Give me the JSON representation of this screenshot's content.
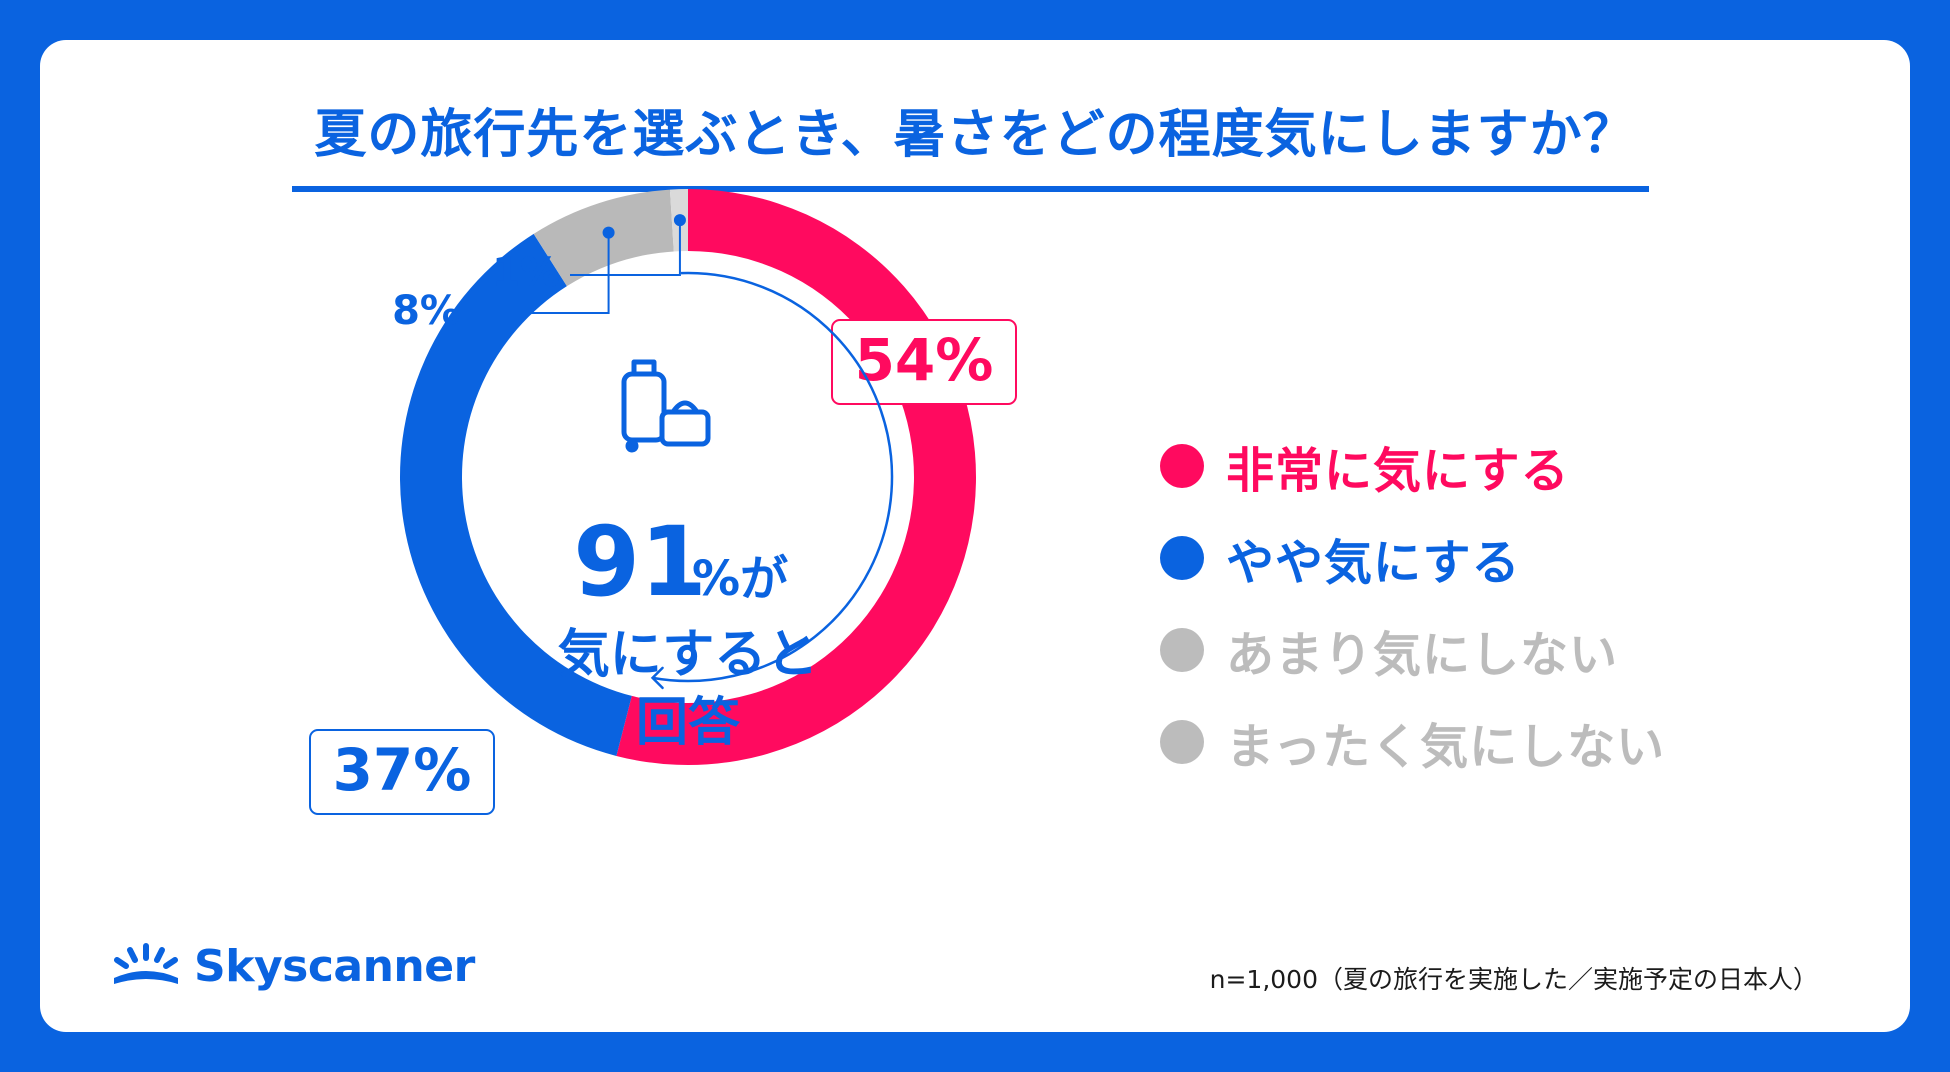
{
  "title": "夏の旅行先を選ぶとき、暑さをどの程度気にしますか？",
  "center": {
    "big_value": "91",
    "line1_suffix": "%が",
    "line2": "気にすると",
    "line3": "回答"
  },
  "chart_data": {
    "type": "pie",
    "donut": true,
    "categories": [
      "非常に気にする",
      "やや気にする",
      "あまり気にしない",
      "まったく気にしない"
    ],
    "values": [
      54,
      37,
      8,
      1
    ],
    "value_labels": [
      "54%",
      "37%",
      "8%",
      "1%"
    ],
    "colors": [
      "#ff0a5f",
      "#0a63e0",
      "#b9b9b9",
      "#dadada"
    ],
    "legend_placement": "right"
  },
  "legend": [
    {
      "label": "非常に気にする",
      "color": "#ff0a5f",
      "text_color": "#ff0a5f"
    },
    {
      "label": "やや気にする",
      "color": "#0a63e0",
      "text_color": "#0a63e0"
    },
    {
      "label": "あまり気にしない",
      "color": "#bcbcbc",
      "text_color": "#bcbcbc"
    },
    {
      "label": "まったく気にしない",
      "color": "#bcbcbc",
      "text_color": "#bcbcbc"
    }
  ],
  "brand": {
    "name": "Skyscanner",
    "icon": "skyscanner-sunrise-icon",
    "color": "#0a63e0"
  },
  "footnote": "n=1,000（夏の旅行を実施した／実施予定の日本人）",
  "center_icon": "luggage-icon"
}
